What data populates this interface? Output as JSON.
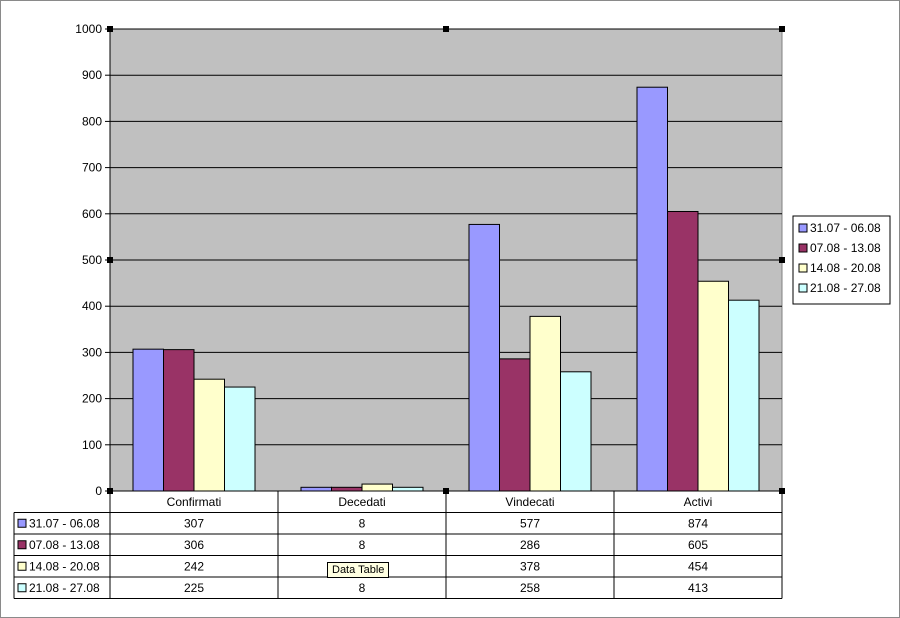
{
  "chart_data": {
    "type": "bar",
    "categories": [
      "Confirmati",
      "Decedati",
      "Vindecati",
      "Activi"
    ],
    "series": [
      {
        "name": "31.07 - 06.08",
        "values": [
          307,
          8,
          577,
          874
        ],
        "color": "#9999ff"
      },
      {
        "name": "07.08 - 13.08",
        "values": [
          306,
          8,
          286,
          605
        ],
        "color": "#993366"
      },
      {
        "name": "14.08 - 20.08",
        "values": [
          242,
          15,
          378,
          454
        ],
        "color": "#ffffcc"
      },
      {
        "name": "21.08 - 27.08",
        "values": [
          225,
          8,
          258,
          413
        ],
        "color": "#ccffff"
      }
    ],
    "table_display": [
      [
        "307",
        "8",
        "577",
        "874"
      ],
      [
        "306",
        "8",
        "286",
        "605"
      ],
      [
        "242",
        "15",
        "378",
        "454"
      ],
      [
        "225",
        "8",
        "258",
        "413"
      ]
    ],
    "ylim": [
      0,
      1000
    ],
    "yticks": [
      0,
      100,
      200,
      300,
      400,
      500,
      600,
      700,
      800,
      900,
      1000
    ],
    "grid": true,
    "legend": "right",
    "data_table": true,
    "plot_background": "#c0c0c0"
  },
  "tooltip": "Data Table"
}
